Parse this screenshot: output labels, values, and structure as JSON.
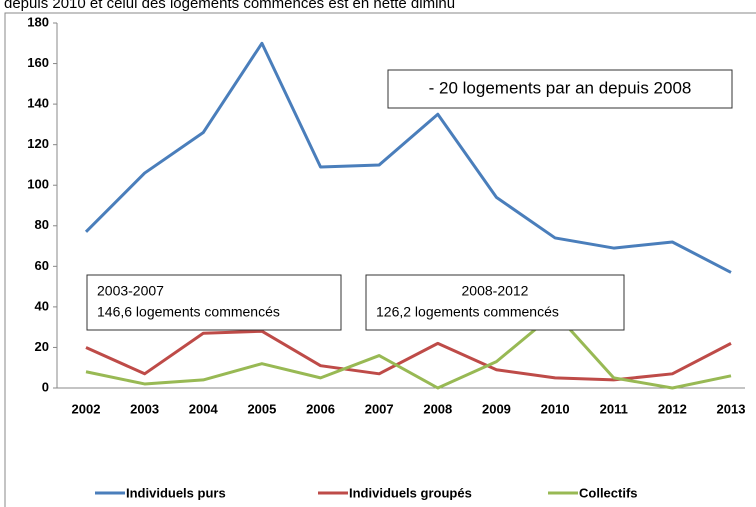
{
  "header_text": "depuis 2010 et celui des logements commencés est en nette diminu",
  "chart_data": {
    "type": "line",
    "categories": [
      "2002",
      "2003",
      "2004",
      "2005",
      "2006",
      "2007",
      "2008",
      "2009",
      "2010",
      "2011",
      "2012",
      "2013"
    ],
    "series": [
      {
        "name": "Individuels purs",
        "color": "#4a7ebb",
        "values": [
          77,
          106,
          126,
          170,
          109,
          110,
          135,
          94,
          74,
          69,
          72,
          57
        ]
      },
      {
        "name": "Individuels groupés",
        "color": "#be4b48",
        "values": [
          20,
          7,
          27,
          28,
          11,
          7,
          22,
          9,
          5,
          4,
          7,
          22
        ]
      },
      {
        "name": "Collectifs",
        "color": "#98b954",
        "values": [
          8,
          2,
          4,
          12,
          5,
          16,
          0,
          13,
          37,
          5,
          0,
          6
        ]
      }
    ],
    "ylim": [
      0,
      180
    ],
    "yticks": [
      0,
      20,
      40,
      60,
      80,
      100,
      120,
      140,
      160,
      180
    ],
    "grid": false,
    "legend": "bottom",
    "annotations": [
      {
        "lines": [
          "- 20 logements par an depuis 2008"
        ]
      },
      {
        "lines": [
          "2003-2007",
          "146,6 logements commencés"
        ]
      },
      {
        "lines": [
          "2008-2012",
          "126,2 logements commencés"
        ]
      }
    ]
  }
}
